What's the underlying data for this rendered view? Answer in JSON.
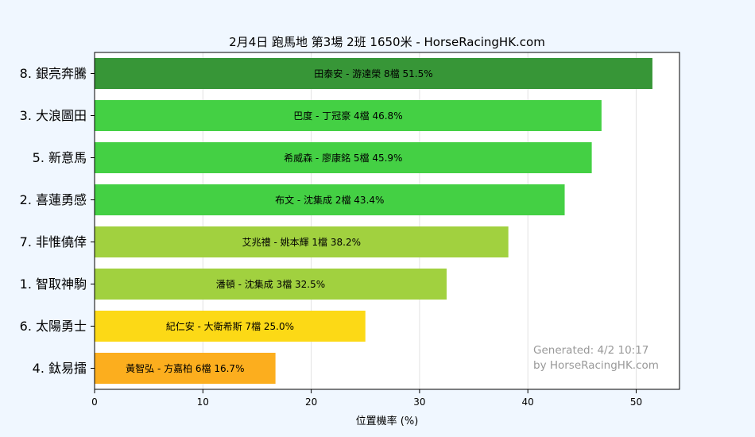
{
  "chart_data": {
    "type": "bar",
    "orientation": "horizontal",
    "title": "2月4日  跑馬地  第3場  2班  1650米 - HorseRacingHK.com",
    "xlabel": "位置機率 (%)",
    "ylabel": "",
    "xlim": [
      0,
      54
    ],
    "xticks": [
      0,
      10,
      20,
      30,
      40,
      50
    ],
    "grid": true,
    "categories": [
      "8. 銀亮奔騰",
      "3. 大浪圖田",
      "5. 新意馬",
      "2. 喜蓮勇感",
      "7. 非惟僥倖",
      "1. 智取神駒",
      "6. 太陽勇士",
      "4. 鈦易擂"
    ],
    "values": [
      51.5,
      46.8,
      45.9,
      43.4,
      38.2,
      32.5,
      25.0,
      16.7
    ],
    "bar_labels": [
      "田泰安 - 游達榮 8檔  51.5%",
      "巴度 - 丁冠豪 4檔  46.8%",
      "希威森 - 廖康銘 5檔  45.9%",
      "布文 - 沈集成 2檔  43.4%",
      "艾兆禮 - 姚本輝 1檔  38.2%",
      "潘頓 - 沈集成 3檔  32.5%",
      "紀仁安 - 大衛希斯 7檔  25.0%",
      "黃智弘 - 方嘉柏 6檔  16.7%"
    ],
    "colors": [
      "#379637",
      "#44d044",
      "#44d044",
      "#44d044",
      "#a1d13f",
      "#a1d13f",
      "#fcd916",
      "#fcae1e"
    ],
    "footer": [
      "Generated: 4/2 10:17",
      "by HorseRacingHK.com"
    ]
  }
}
